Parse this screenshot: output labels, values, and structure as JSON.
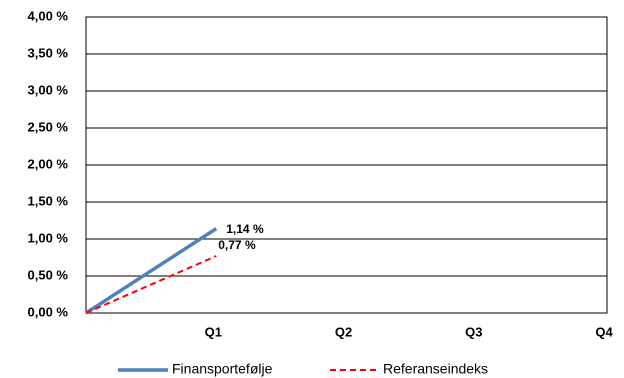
{
  "chart_data": {
    "type": "line",
    "categories": [
      null,
      "Q1",
      "Q2",
      "Q3",
      "Q4"
    ],
    "series": [
      {
        "name": "Finansportefølje",
        "color": "#4f81bd",
        "values": [
          0,
          1.14,
          null,
          null,
          null
        ],
        "value_labels": [
          null,
          "1,14 %",
          null,
          null,
          null
        ]
      },
      {
        "name": "Referanseindeks",
        "color": "#ff0000",
        "dashed": true,
        "values": [
          0,
          0.77,
          null,
          null,
          null
        ],
        "value_labels": [
          null,
          "0,77 %",
          null,
          null,
          null
        ]
      }
    ],
    "ylim": [
      0,
      4
    ],
    "yticks": [
      {
        "value": 0,
        "label": "0,00 %"
      },
      {
        "value": 0.5,
        "label": "0,50 %"
      },
      {
        "value": 1,
        "label": "1,00 %"
      },
      {
        "value": 1.5,
        "label": "1,50 %"
      },
      {
        "value": 2,
        "label": "2,00 %"
      },
      {
        "value": 2.5,
        "label": "2,50 %"
      },
      {
        "value": 3,
        "label": "3,00 %"
      },
      {
        "value": 3.5,
        "label": "3,50 %"
      },
      {
        "value": 4,
        "label": "4,00 %"
      }
    ],
    "grid": true,
    "legend": "bottom"
  }
}
